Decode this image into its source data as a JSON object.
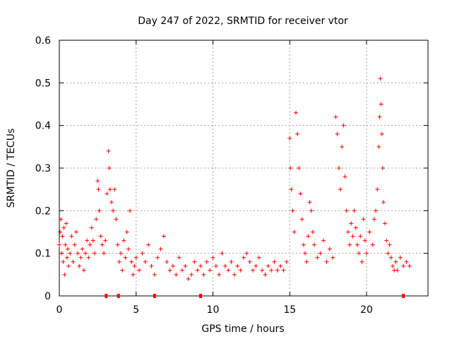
{
  "chart_data": {
    "type": "scatter",
    "title": "Day 247 of 2022, SRMTID for receiver vtor",
    "xlabel": "GPS time / hours",
    "ylabel": "SRMTID / TECUs",
    "xlim": [
      0,
      24
    ],
    "ylim": [
      0,
      0.6
    ],
    "xticks": [
      0,
      5,
      10,
      15,
      20
    ],
    "yticks": [
      0,
      0.1,
      0.2,
      0.3,
      0.4,
      0.5,
      0.6
    ],
    "xtick_labels": [
      "0",
      "5",
      "10",
      "15",
      "20"
    ],
    "ytick_labels": [
      "0",
      "0.1",
      "0.2",
      "0.3",
      "0.4",
      "0.5",
      "0.6"
    ],
    "grid": true,
    "marker": "+",
    "color": "#ff0000",
    "series": [
      {
        "name": "SRMTID",
        "points": [
          [
            0.0,
            0.12
          ],
          [
            0.05,
            0.15
          ],
          [
            0.1,
            0.18
          ],
          [
            0.15,
            0.1
          ],
          [
            0.2,
            0.14
          ],
          [
            0.25,
            0.08
          ],
          [
            0.3,
            0.16
          ],
          [
            0.35,
            0.05
          ],
          [
            0.4,
            0.12
          ],
          [
            0.45,
            0.17
          ],
          [
            0.5,
            0.09
          ],
          [
            0.55,
            0.11
          ],
          [
            0.6,
            0.07
          ],
          [
            0.7,
            0.1
          ],
          [
            0.8,
            0.14
          ],
          [
            0.9,
            0.08
          ],
          [
            1.0,
            0.12
          ],
          [
            1.1,
            0.15
          ],
          [
            1.2,
            0.1
          ],
          [
            1.3,
            0.07
          ],
          [
            1.4,
            0.09
          ],
          [
            1.5,
            0.11
          ],
          [
            1.6,
            0.06
          ],
          [
            1.7,
            0.1
          ],
          [
            1.8,
            0.13
          ],
          [
            1.9,
            0.09
          ],
          [
            2.0,
            0.12
          ],
          [
            2.1,
            0.16
          ],
          [
            2.2,
            0.13
          ],
          [
            2.3,
            0.1
          ],
          [
            2.4,
            0.18
          ],
          [
            2.5,
            0.27
          ],
          [
            2.55,
            0.25
          ],
          [
            2.6,
            0.2
          ],
          [
            2.7,
            0.14
          ],
          [
            2.8,
            0.12
          ],
          [
            2.9,
            0.1
          ],
          [
            3.0,
            0.13
          ],
          [
            3.1,
            0.24
          ],
          [
            3.2,
            0.34
          ],
          [
            3.25,
            0.3
          ],
          [
            3.3,
            0.25
          ],
          [
            3.4,
            0.22
          ],
          [
            3.5,
            0.2
          ],
          [
            3.6,
            0.25
          ],
          [
            3.7,
            0.18
          ],
          [
            3.8,
            0.12
          ],
          [
            3.9,
            0.08
          ],
          [
            4.0,
            0.1
          ],
          [
            4.1,
            0.06
          ],
          [
            4.2,
            0.13
          ],
          [
            4.3,
            0.09
          ],
          [
            4.4,
            0.15
          ],
          [
            4.5,
            0.11
          ],
          [
            4.6,
            0.2
          ],
          [
            4.7,
            0.08
          ],
          [
            4.8,
            0.05
          ],
          [
            4.9,
            0.07
          ],
          [
            5.0,
            0.09
          ],
          [
            5.2,
            0.06
          ],
          [
            5.4,
            0.1
          ],
          [
            5.6,
            0.08
          ],
          [
            5.8,
            0.12
          ],
          [
            6.0,
            0.07
          ],
          [
            6.2,
            0.05
          ],
          [
            6.4,
            0.09
          ],
          [
            6.6,
            0.11
          ],
          [
            6.8,
            0.14
          ],
          [
            7.0,
            0.08
          ],
          [
            7.2,
            0.06
          ],
          [
            7.4,
            0.07
          ],
          [
            7.6,
            0.05
          ],
          [
            7.8,
            0.09
          ],
          [
            8.0,
            0.06
          ],
          [
            8.2,
            0.07
          ],
          [
            8.4,
            0.04
          ],
          [
            8.6,
            0.05
          ],
          [
            8.8,
            0.08
          ],
          [
            9.0,
            0.06
          ],
          [
            9.2,
            0.07
          ],
          [
            9.4,
            0.05
          ],
          [
            9.6,
            0.08
          ],
          [
            9.8,
            0.06
          ],
          [
            10.0,
            0.09
          ],
          [
            10.2,
            0.07
          ],
          [
            10.4,
            0.05
          ],
          [
            10.6,
            0.1
          ],
          [
            10.8,
            0.07
          ],
          [
            11.0,
            0.06
          ],
          [
            11.2,
            0.08
          ],
          [
            11.4,
            0.05
          ],
          [
            11.6,
            0.07
          ],
          [
            11.8,
            0.06
          ],
          [
            12.0,
            0.09
          ],
          [
            12.2,
            0.1
          ],
          [
            12.4,
            0.08
          ],
          [
            12.6,
            0.06
          ],
          [
            12.8,
            0.07
          ],
          [
            13.0,
            0.09
          ],
          [
            13.2,
            0.06
          ],
          [
            13.4,
            0.05
          ],
          [
            13.6,
            0.07
          ],
          [
            13.8,
            0.06
          ],
          [
            14.0,
            0.08
          ],
          [
            14.2,
            0.06
          ],
          [
            14.4,
            0.07
          ],
          [
            14.6,
            0.06
          ],
          [
            14.8,
            0.08
          ],
          [
            15.0,
            0.37
          ],
          [
            15.05,
            0.3
          ],
          [
            15.1,
            0.25
          ],
          [
            15.2,
            0.2
          ],
          [
            15.3,
            0.15
          ],
          [
            15.4,
            0.43
          ],
          [
            15.5,
            0.38
          ],
          [
            15.6,
            0.3
          ],
          [
            15.7,
            0.24
          ],
          [
            15.8,
            0.18
          ],
          [
            15.9,
            0.12
          ],
          [
            16.0,
            0.1
          ],
          [
            16.1,
            0.08
          ],
          [
            16.2,
            0.14
          ],
          [
            16.3,
            0.22
          ],
          [
            16.4,
            0.2
          ],
          [
            16.5,
            0.15
          ],
          [
            16.6,
            0.12
          ],
          [
            16.8,
            0.09
          ],
          [
            17.0,
            0.1
          ],
          [
            17.2,
            0.13
          ],
          [
            17.4,
            0.08
          ],
          [
            17.6,
            0.11
          ],
          [
            17.8,
            0.09
          ],
          [
            18.0,
            0.42
          ],
          [
            18.1,
            0.38
          ],
          [
            18.2,
            0.3
          ],
          [
            18.3,
            0.25
          ],
          [
            18.4,
            0.35
          ],
          [
            18.5,
            0.4
          ],
          [
            18.6,
            0.28
          ],
          [
            18.7,
            0.2
          ],
          [
            18.8,
            0.15
          ],
          [
            18.9,
            0.12
          ],
          [
            19.0,
            0.17
          ],
          [
            19.1,
            0.14
          ],
          [
            19.2,
            0.2
          ],
          [
            19.3,
            0.16
          ],
          [
            19.4,
            0.12
          ],
          [
            19.5,
            0.1
          ],
          [
            19.6,
            0.14
          ],
          [
            19.7,
            0.08
          ],
          [
            19.8,
            0.18
          ],
          [
            19.9,
            0.13
          ],
          [
            20.0,
            0.1
          ],
          [
            20.2,
            0.15
          ],
          [
            20.4,
            0.12
          ],
          [
            20.5,
            0.18
          ],
          [
            20.6,
            0.2
          ],
          [
            20.7,
            0.25
          ],
          [
            20.8,
            0.35
          ],
          [
            20.85,
            0.42
          ],
          [
            20.9,
            0.51
          ],
          [
            20.95,
            0.45
          ],
          [
            21.0,
            0.38
          ],
          [
            21.05,
            0.3
          ],
          [
            21.1,
            0.22
          ],
          [
            21.2,
            0.17
          ],
          [
            21.3,
            0.13
          ],
          [
            21.4,
            0.1
          ],
          [
            21.5,
            0.12
          ],
          [
            21.6,
            0.09
          ],
          [
            21.7,
            0.07
          ],
          [
            21.8,
            0.06
          ],
          [
            21.9,
            0.08
          ],
          [
            22.0,
            0.06
          ],
          [
            22.2,
            0.09
          ],
          [
            22.4,
            0.07
          ],
          [
            22.6,
            0.08
          ],
          [
            22.8,
            0.07
          ]
        ]
      }
    ],
    "missing_data_markers_x": [
      3.05,
      3.85,
      6.2,
      9.2,
      22.4
    ]
  }
}
